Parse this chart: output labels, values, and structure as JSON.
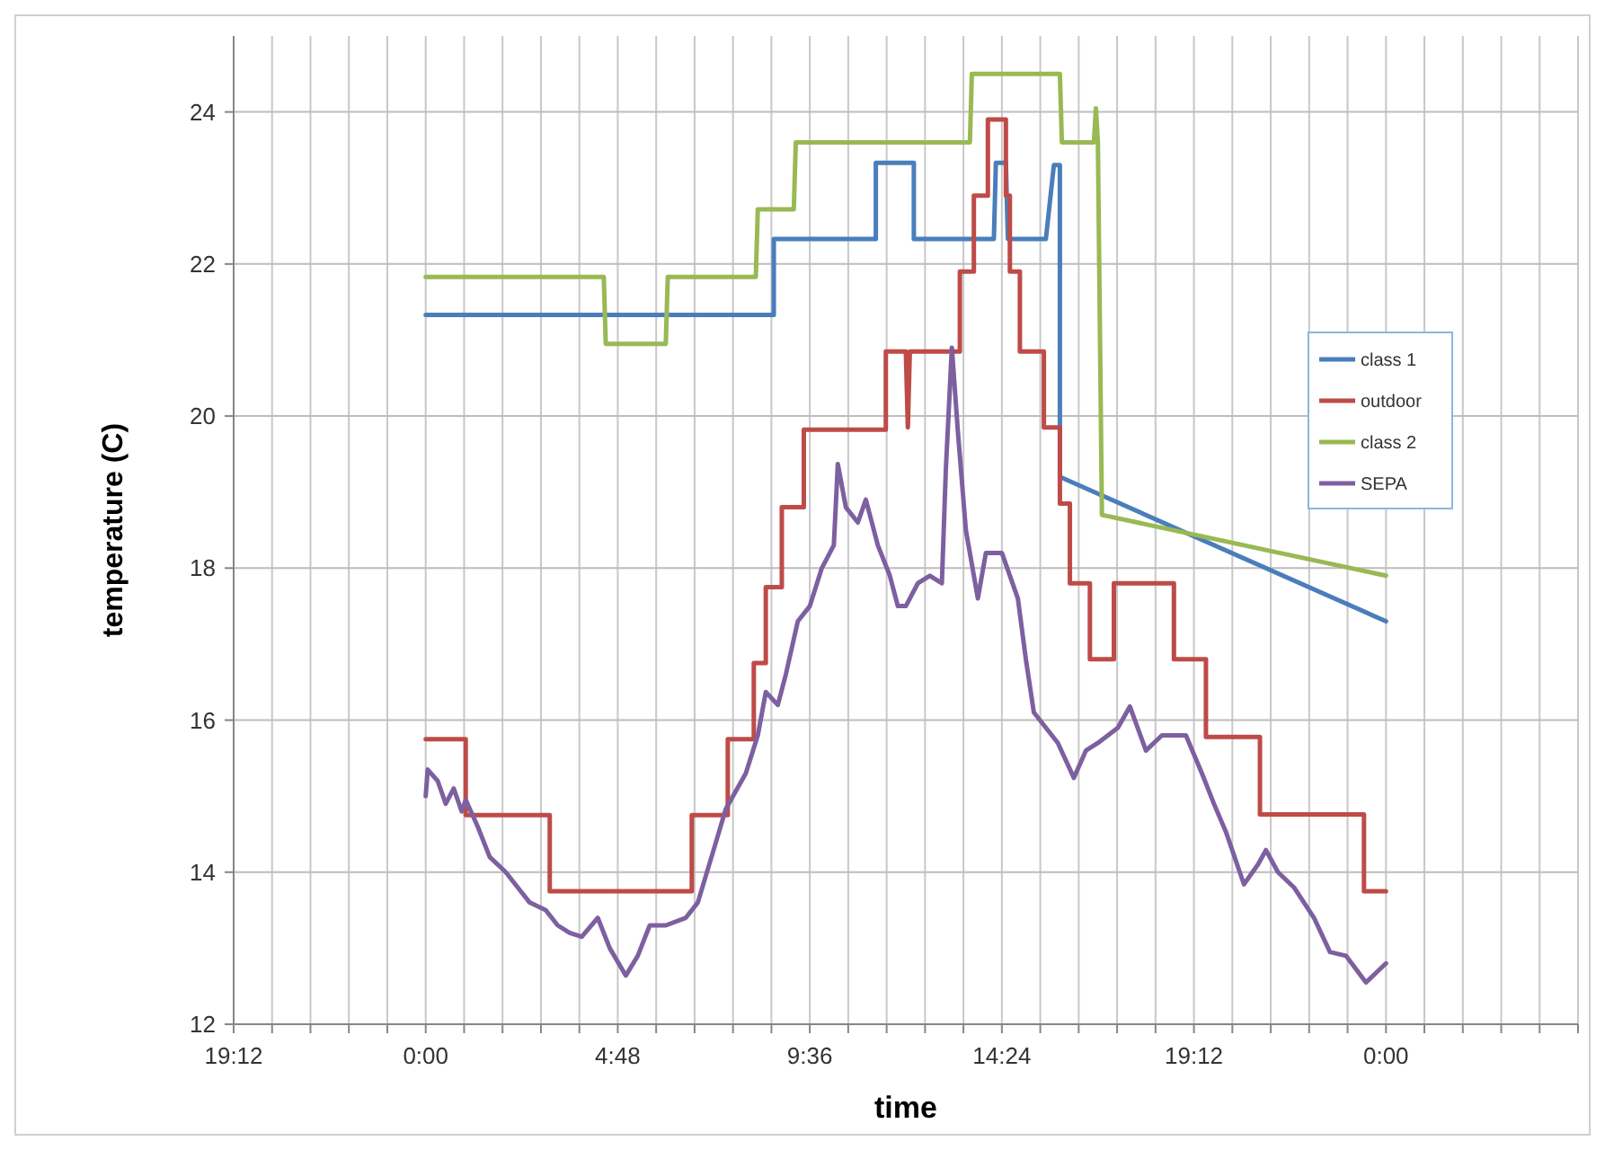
{
  "chart_data": {
    "type": "line",
    "xlabel": "time",
    "ylabel": "temperature (C)",
    "xlim": [
      "--01-01T19:12",
      "--01-03T04:48"
    ],
    "ylim": [
      12,
      25
    ],
    "xticks": [
      {
        "value": "--01-01T19:12",
        "label": "19:12"
      },
      {
        "value": "--01-01T20:09:36",
        "label": null
      },
      {
        "value": "--01-01T21:07:12",
        "label": null
      },
      {
        "value": "--01-01T22:04:48",
        "label": null
      },
      {
        "value": "--01-01T23:02:24",
        "label": null
      },
      {
        "value": "--01-02T00:00",
        "label": "0:00"
      },
      {
        "value": "--01-02T00:57:36",
        "label": null
      },
      {
        "value": "--01-02T01:55:12",
        "label": null
      },
      {
        "value": "--01-02T02:52:48",
        "label": null
      },
      {
        "value": "--01-02T03:50:24",
        "label": null
      },
      {
        "value": "--01-02T04:48",
        "label": "4:48"
      },
      {
        "value": "--01-02T05:45:36",
        "label": null
      },
      {
        "value": "--01-02T06:43:12",
        "label": null
      },
      {
        "value": "--01-02T07:40:48",
        "label": null
      },
      {
        "value": "--01-02T08:38:24",
        "label": null
      },
      {
        "value": "--01-02T09:36",
        "label": "9:36"
      },
      {
        "value": "--01-02T10:33:36",
        "label": null
      },
      {
        "value": "--01-02T11:31:12",
        "label": null
      },
      {
        "value": "--01-02T12:28:48",
        "label": null
      },
      {
        "value": "--01-02T13:26:24",
        "label": null
      },
      {
        "value": "--01-02T14:24",
        "label": "14:24"
      },
      {
        "value": "--01-02T15:21:36",
        "label": null
      },
      {
        "value": "--01-02T16:19:12",
        "label": null
      },
      {
        "value": "--01-02T17:16:48",
        "label": null
      },
      {
        "value": "--01-02T18:14:24",
        "label": null
      },
      {
        "value": "--01-02T19:12",
        "label": "19:12"
      },
      {
        "value": "--01-02T20:09:36",
        "label": null
      },
      {
        "value": "--01-02T21:07:12",
        "label": null
      },
      {
        "value": "--01-02T22:04:48",
        "label": null
      },
      {
        "value": "--01-02T23:02:24",
        "label": null
      },
      {
        "value": "--01-03T00:00",
        "label": "0:00"
      },
      {
        "value": "--01-03T00:57:36",
        "label": null
      },
      {
        "value": "--01-03T01:55:12",
        "label": null
      },
      {
        "value": "--01-03T02:52:48",
        "label": null
      },
      {
        "value": "--01-03T03:50:24",
        "label": null
      },
      {
        "value": "--01-03T04:48",
        "label": null
      }
    ],
    "yticks": [
      12,
      14,
      16,
      18,
      20,
      22,
      24
    ],
    "grid": true,
    "legend": "right",
    "marker": "none",
    "line_style": "solid",
    "series": [
      {
        "name": "class 1",
        "color": "#4a7ebb",
        "x": [
          "--01-02T00:00",
          "--01-02T08:42",
          "--01-02T08:42",
          "--01-02T11:15",
          "--01-02T11:15",
          "--01-02T12:12",
          "--01-02T12:12",
          "--01-02T14:12",
          "--01-02T14:15",
          "--01-02T14:30",
          "--01-02T14:33",
          "--01-02T15:30",
          "--01-02T15:42",
          "--01-02T15:51",
          "--01-02T15:51",
          "--01-03T00:00"
        ],
        "values": [
          21.33,
          21.33,
          22.33,
          22.33,
          23.33,
          23.33,
          22.33,
          22.33,
          23.33,
          23.33,
          22.33,
          22.33,
          23.3,
          23.3,
          19.2,
          17.3
        ]
      },
      {
        "name": "outdoor",
        "color": "#be4b48",
        "x": [
          "--01-02T00:00",
          "--01-02T01:00",
          "--01-02T01:00",
          "--01-02T03:06",
          "--01-02T03:06",
          "--01-02T06:39",
          "--01-02T06:39",
          "--01-02T07:33",
          "--01-02T07:33",
          "--01-02T08:12",
          "--01-02T08:12",
          "--01-02T08:30",
          "--01-02T08:30",
          "--01-02T08:54",
          "--01-02T08:54",
          "--01-02T09:27",
          "--01-02T09:27",
          "--01-02T11:30",
          "--01-02T11:30",
          "--01-02T12:00",
          "--01-02T12:03",
          "--01-02T12:06",
          "--01-02T12:06",
          "--01-02T13:21",
          "--01-02T13:21",
          "--01-02T13:42",
          "--01-02T13:42",
          "--01-02T14:03",
          "--01-02T14:03",
          "--01-02T14:30",
          "--01-02T14:30",
          "--01-02T14:36",
          "--01-02T14:36",
          "--01-02T14:51",
          "--01-02T14:51",
          "--01-02T15:27",
          "--01-02T15:27",
          "--01-02T15:51",
          "--01-02T15:51",
          "--01-02T16:06",
          "--01-02T16:06",
          "--01-02T16:36",
          "--01-02T16:36",
          "--01-02T17:12",
          "--01-02T17:12",
          "--01-02T18:42",
          "--01-02T18:42",
          "--01-02T19:30",
          "--01-02T19:30",
          "--01-02T20:51",
          "--01-02T20:51",
          "--01-02T23:27",
          "--01-02T23:27",
          "--01-03T00:00"
        ],
        "values": [
          15.75,
          15.75,
          14.75,
          14.75,
          13.75,
          13.75,
          14.75,
          14.75,
          15.75,
          15.75,
          16.75,
          16.75,
          17.75,
          17.75,
          18.8,
          18.8,
          19.82,
          19.82,
          20.85,
          20.85,
          19.85,
          20.85,
          20.85,
          20.85,
          21.9,
          21.9,
          22.9,
          22.9,
          23.9,
          23.9,
          22.9,
          22.9,
          21.9,
          21.9,
          20.85,
          20.85,
          19.85,
          19.85,
          18.85,
          18.85,
          17.8,
          17.8,
          16.8,
          16.8,
          17.8,
          17.8,
          16.8,
          16.8,
          15.78,
          15.78,
          14.76,
          14.76,
          13.75,
          13.75
        ]
      },
      {
        "name": "class 2",
        "color": "#98b954",
        "x": [
          "--01-02T00:00",
          "--01-02T04:27",
          "--01-02T04:30",
          "--01-02T06:00",
          "--01-02T06:03",
          "--01-02T08:15",
          "--01-02T08:18",
          "--01-02T09:12",
          "--01-02T09:15",
          "--01-02T13:36",
          "--01-02T13:39",
          "--01-02T15:51",
          "--01-02T15:54",
          "--01-02T16:42",
          "--01-02T16:45",
          "--01-02T16:48",
          "--01-02T16:54",
          "--01-03T00:00"
        ],
        "values": [
          21.83,
          21.83,
          20.95,
          20.95,
          21.83,
          21.83,
          22.72,
          22.72,
          23.6,
          23.6,
          24.5,
          24.5,
          23.6,
          23.6,
          24.05,
          23.6,
          18.7,
          17.9
        ]
      },
      {
        "name": "SEPA",
        "color": "#7d60a0",
        "x": [
          "--01-02T00:00",
          "--01-02T00:03",
          "--01-02T00:18",
          "--01-02T00:30",
          "--01-02T00:42",
          "--01-02T00:54",
          "--01-02T01:00",
          "--01-02T01:18",
          "--01-02T01:36",
          "--01-02T02:00",
          "--01-02T02:18",
          "--01-02T02:36",
          "--01-02T03:00",
          "--01-02T03:18",
          "--01-02T03:36",
          "--01-02T03:54",
          "--01-02T04:18",
          "--01-02T04:36",
          "--01-02T05:00",
          "--01-02T05:18",
          "--01-02T05:36",
          "--01-02T06:00",
          "--01-02T06:30",
          "--01-02T06:48",
          "--01-02T07:12",
          "--01-02T07:30",
          "--01-02T08:00",
          "--01-02T08:18",
          "--01-02T08:30",
          "--01-02T08:48",
          "--01-02T09:00",
          "--01-02T09:18",
          "--01-02T09:36",
          "--01-02T09:54",
          "--01-02T10:12",
          "--01-02T10:18",
          "--01-02T10:30",
          "--01-02T10:48",
          "--01-02T11:00",
          "--01-02T11:18",
          "--01-02T11:36",
          "--01-02T11:48",
          "--01-02T12:00",
          "--01-02T12:18",
          "--01-02T12:36",
          "--01-02T12:54",
          "--01-02T13:00",
          "--01-02T13:09",
          "--01-02T13:18",
          "--01-02T13:30",
          "--01-02T13:42",
          "--01-02T13:48",
          "--01-02T14:00",
          "--01-02T14:24",
          "--01-02T14:48",
          "--01-02T15:00",
          "--01-02T15:12",
          "--01-02T15:30",
          "--01-02T15:48",
          "--01-02T16:12",
          "--01-02T16:30",
          "--01-02T16:48",
          "--01-02T17:18",
          "--01-02T17:36",
          "--01-02T18:00",
          "--01-02T18:24",
          "--01-02T19:00",
          "--01-02T19:24",
          "--01-02T19:42",
          "--01-02T20:00",
          "--01-02T20:27",
          "--01-02T20:48",
          "--01-02T21:00",
          "--01-02T21:18",
          "--01-02T21:42",
          "--01-02T22:12",
          "--01-02T22:36",
          "--01-02T23:00",
          "--01-02T23:30",
          "--01-02T23:48",
          "--01-03T00:00"
        ],
        "values": [
          15.0,
          15.35,
          15.2,
          14.9,
          15.1,
          14.8,
          14.95,
          14.6,
          14.2,
          14.0,
          13.8,
          13.6,
          13.5,
          13.3,
          13.2,
          13.15,
          13.4,
          13.0,
          12.64,
          12.9,
          13.3,
          13.3,
          13.4,
          13.6,
          14.3,
          14.83,
          15.3,
          15.8,
          16.37,
          16.2,
          16.6,
          17.3,
          17.5,
          18.0,
          18.3,
          19.37,
          18.8,
          18.6,
          18.9,
          18.3,
          17.9,
          17.5,
          17.5,
          17.8,
          17.9,
          17.8,
          19.3,
          20.9,
          19.8,
          18.5,
          17.9,
          17.6,
          18.2,
          18.2,
          17.6,
          16.8,
          16.1,
          15.9,
          15.7,
          15.24,
          15.6,
          15.7,
          15.9,
          16.18,
          15.6,
          15.8,
          15.8,
          15.3,
          14.9,
          14.53,
          13.84,
          14.1,
          14.29,
          14.0,
          13.8,
          13.4,
          12.95,
          12.9,
          12.55,
          12.7,
          12.8
        ]
      }
    ]
  }
}
